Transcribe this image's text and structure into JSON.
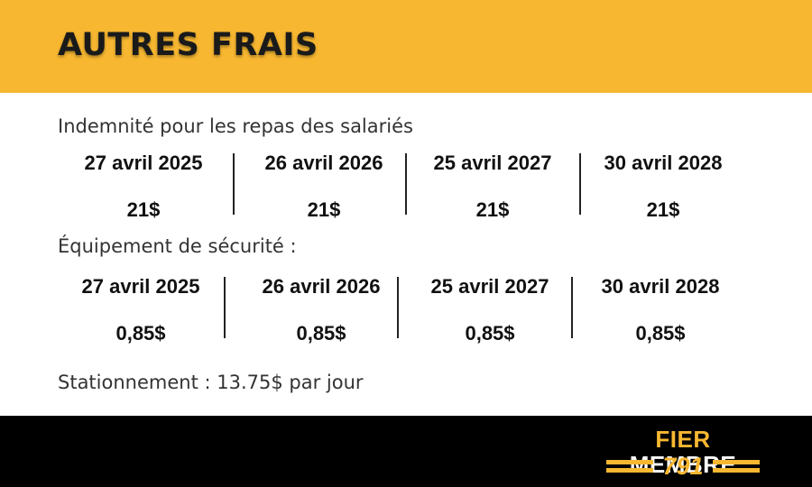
{
  "header": {
    "title": "AUTRES FRAIS"
  },
  "meals": {
    "label": "Indemnité pour les repas des salariés",
    "items": [
      {
        "date": "27 avril 2025",
        "amount": "21$"
      },
      {
        "date": "26 avril 2026",
        "amount": "21$"
      },
      {
        "date": "25 avril 2027",
        "amount": "21$"
      },
      {
        "date": "30 avril 2028",
        "amount": "21$"
      }
    ]
  },
  "safety": {
    "label": "Équipement de sécurité :",
    "items": [
      {
        "date": "27 avril 2025",
        "amount": "0,85$"
      },
      {
        "date": "26 avril 2026",
        "amount": "0,85$"
      },
      {
        "date": "25 avril 2027",
        "amount": "0,85$"
      },
      {
        "date": "30 avril 2028",
        "amount": "0,85$"
      }
    ]
  },
  "parking": {
    "text": "Stationnement : 13.75$ par jour"
  },
  "footer": {
    "logo": {
      "word1": "FIER",
      "word2": "MEMBRE",
      "number": "791"
    }
  },
  "colors": {
    "accent": "#F7B731",
    "footer": "#000000",
    "text": "#111111"
  }
}
